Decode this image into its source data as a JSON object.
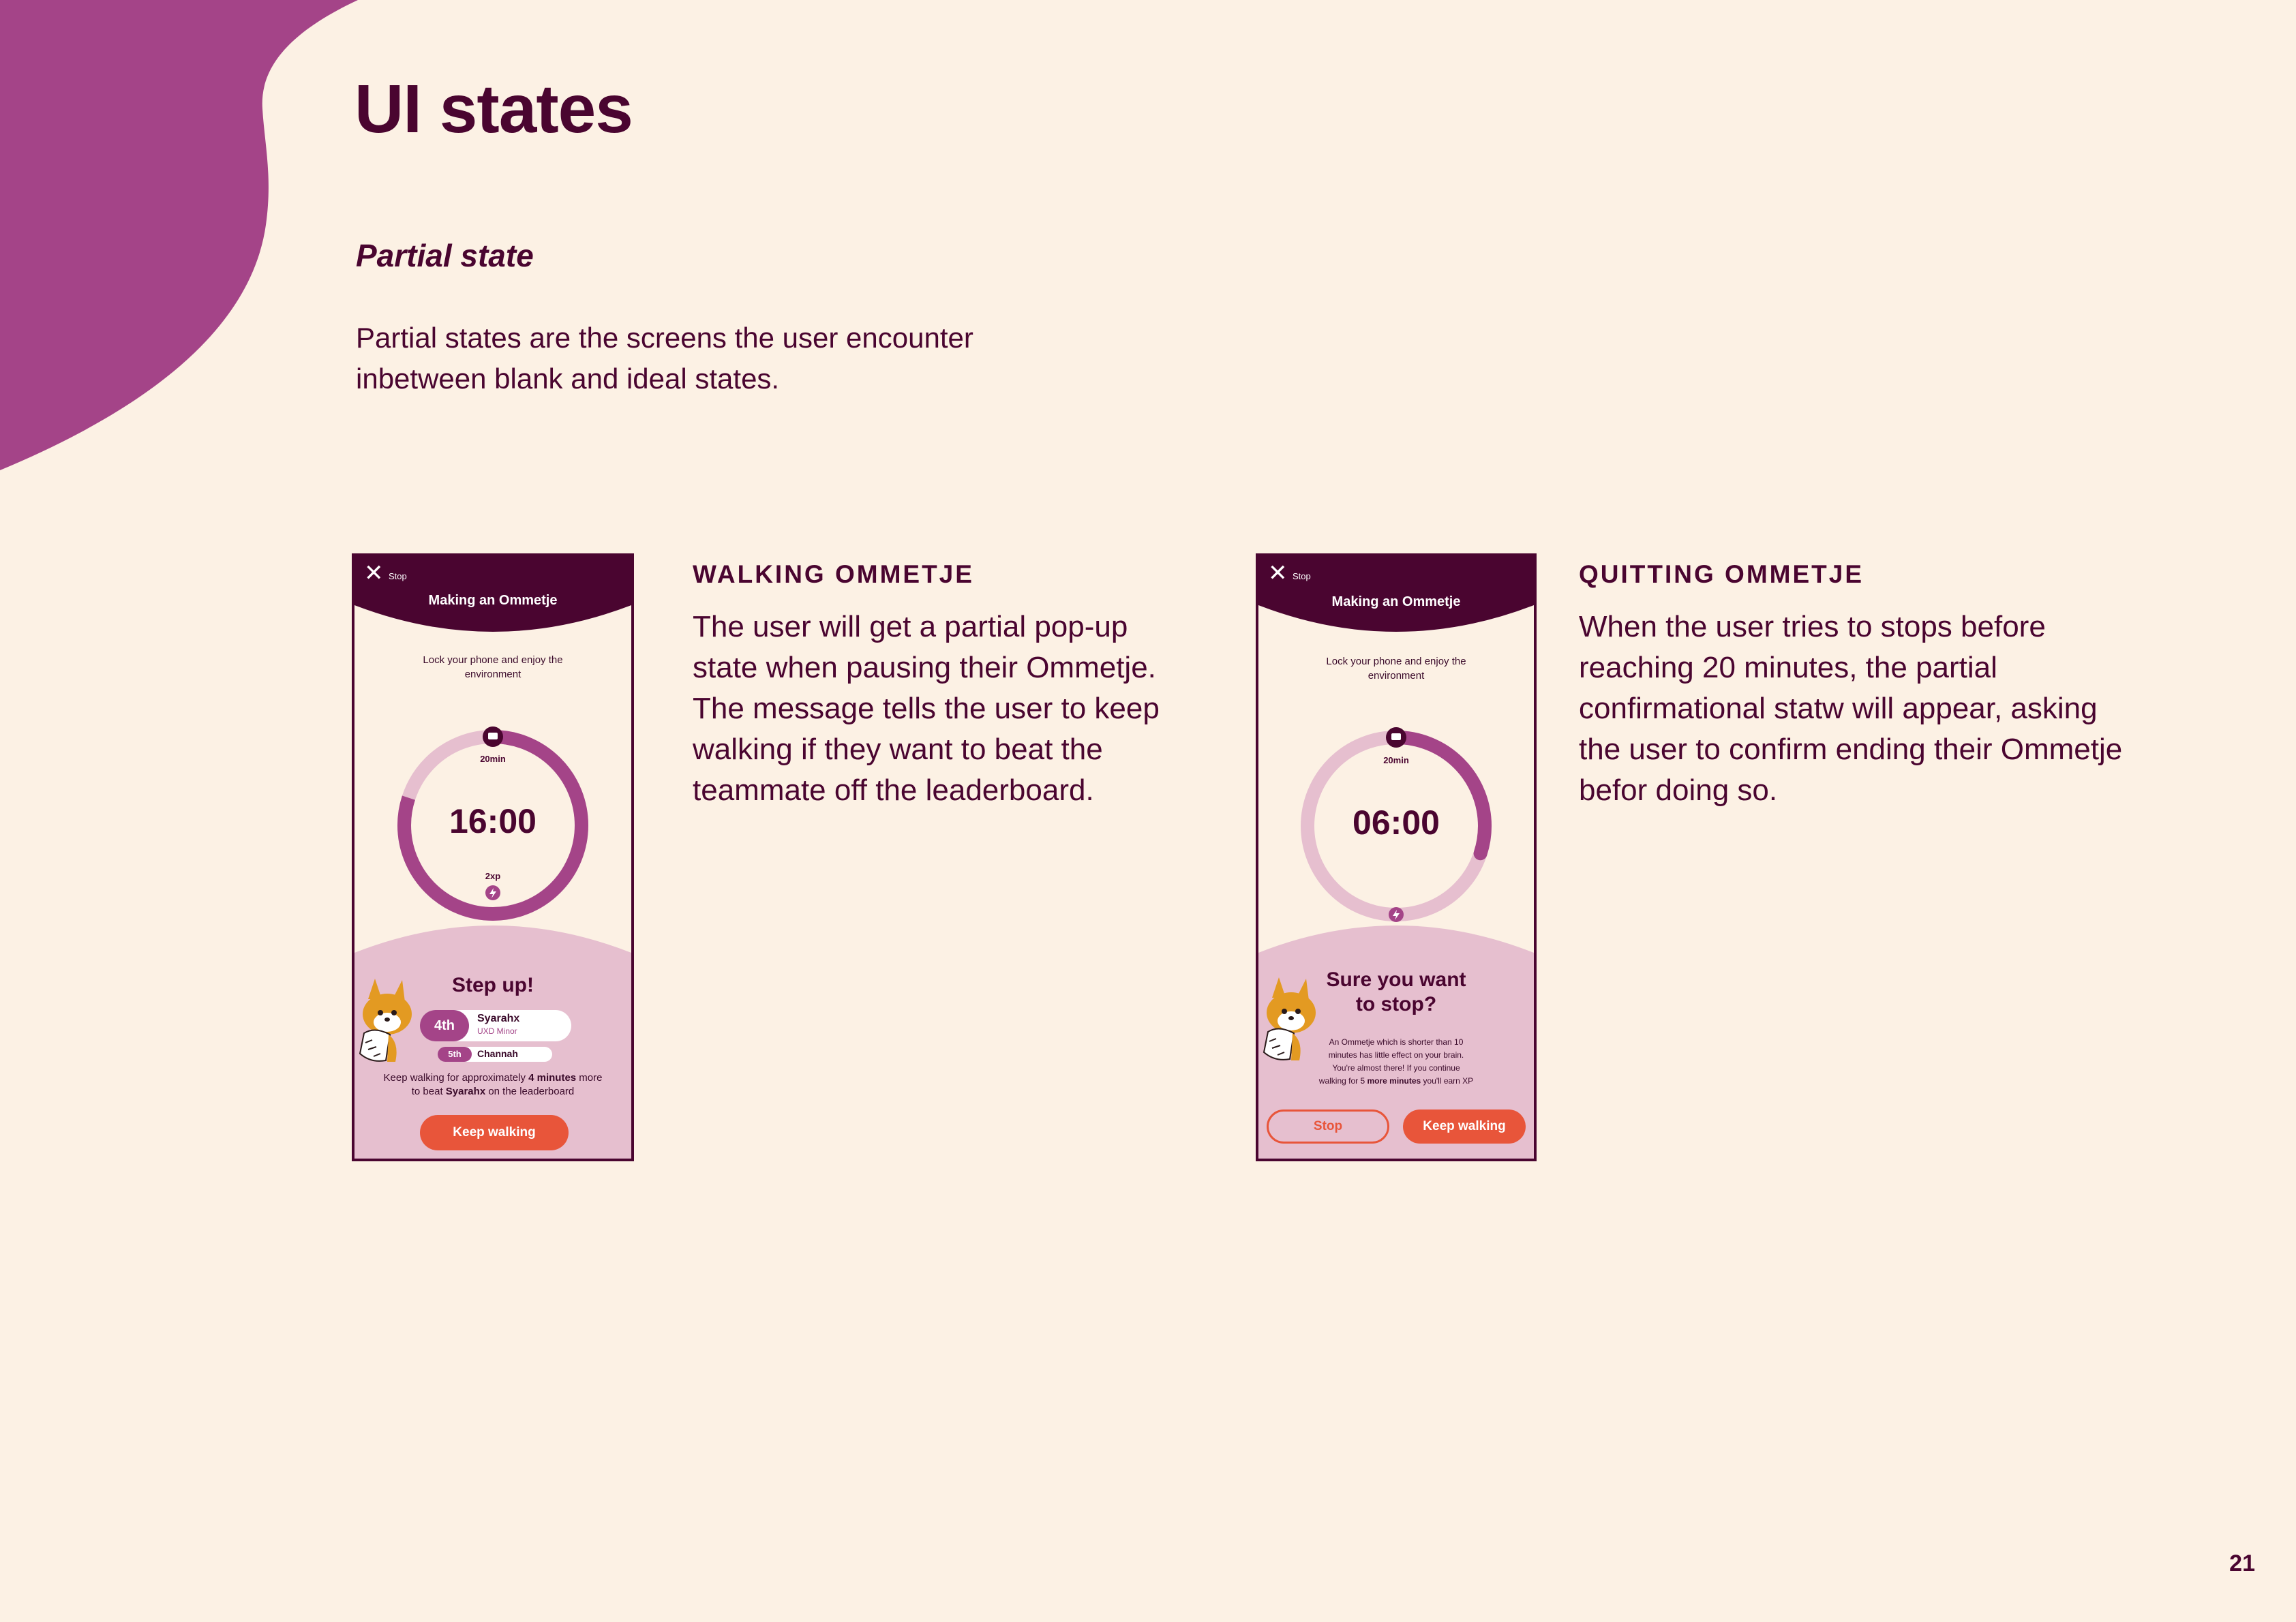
{
  "page": {
    "title": "UI states",
    "subtitle": "Partial state",
    "intro": "Partial states are the screens the user encounter inbetween blank and ideal states.",
    "page_number": "21",
    "colors": {
      "background": "#fcf1e4",
      "accent_purple": "#a44488",
      "dark_plum": "#4a0530",
      "pink_light": "#e6bfcf",
      "orange": "#e8553a"
    }
  },
  "sections": {
    "walking": {
      "heading": "WALKING OMMETJE",
      "body": "The user will get a partial pop-up state when pausing their Ommetje. The message tells the user to keep walking if they want to beat the teammate off the leaderboard."
    },
    "quitting": {
      "heading": "QUITTING OMMETJE",
      "body": "When the user tries to stops before reaching 20 minutes, the partial confirmational statw will appear, asking the user to confirm ending their Ommetje befor doing so."
    }
  },
  "phone1": {
    "close_icon": "close-icon",
    "stop_label": "Stop",
    "header_title": "Making an Ommetje",
    "instruction": "Lock your phone and enjoy the environment",
    "goal_label": "20min",
    "timer": "16:00",
    "progress": 0.8,
    "xp_label": "2xp",
    "popup_title": "Step up!",
    "rank1": {
      "position": "4th",
      "name": "Syarahx",
      "subtitle": "UXD Minor"
    },
    "rank2": {
      "position": "5th",
      "name": "Channah"
    },
    "message_line1_pre": "Keep walking for approximately ",
    "message_line1_bold": "4 minutes",
    "message_line1_post": " more",
    "message_line2_pre": "to beat ",
    "message_line2_bold": "Syarahx",
    "message_line2_post": " on the leaderboard",
    "button": "Keep walking"
  },
  "phone2": {
    "close_icon": "close-icon",
    "stop_label": "Stop",
    "header_title": "Making an Ommetje",
    "instruction": "Lock your phone and enjoy the environment",
    "goal_label": "20min",
    "timer": "06:00",
    "progress": 0.3,
    "popup_title_line1": "Sure you want",
    "popup_title_line2": "to stop?",
    "message_line1": "An Ommetje which is shorter than 10",
    "message_line2": "minutes has little effect on your brain.",
    "message_line3": "You're almost there! If you continue",
    "message_line4_pre": "walking for 5 ",
    "message_line4_bold": "more minutes",
    "message_line4_post": " you'll earn XP",
    "stop_button": "Stop",
    "keep_button": "Keep walking"
  }
}
